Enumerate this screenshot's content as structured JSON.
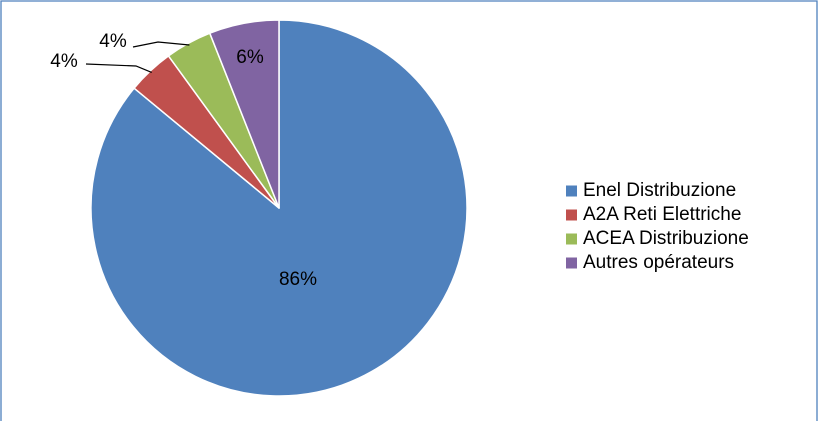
{
  "chart_data": {
    "type": "pie",
    "categories": [
      "Enel Distribuzione",
      "A2A Reti Elettriche",
      "ACEA Distribuzione",
      "Autres opérateurs"
    ],
    "values": [
      86,
      4,
      4,
      6
    ],
    "labels": [
      "86%",
      "4%",
      "4%",
      "6%"
    ],
    "colors": [
      "#4F81BD",
      "#C0504D",
      "#9BBB59",
      "#8064A2"
    ],
    "start_angle_deg": 0,
    "direction": "clockwise",
    "legend_position": "right",
    "frame_color": "#4F81BD",
    "title": "",
    "xlabel": "",
    "ylabel": ""
  }
}
